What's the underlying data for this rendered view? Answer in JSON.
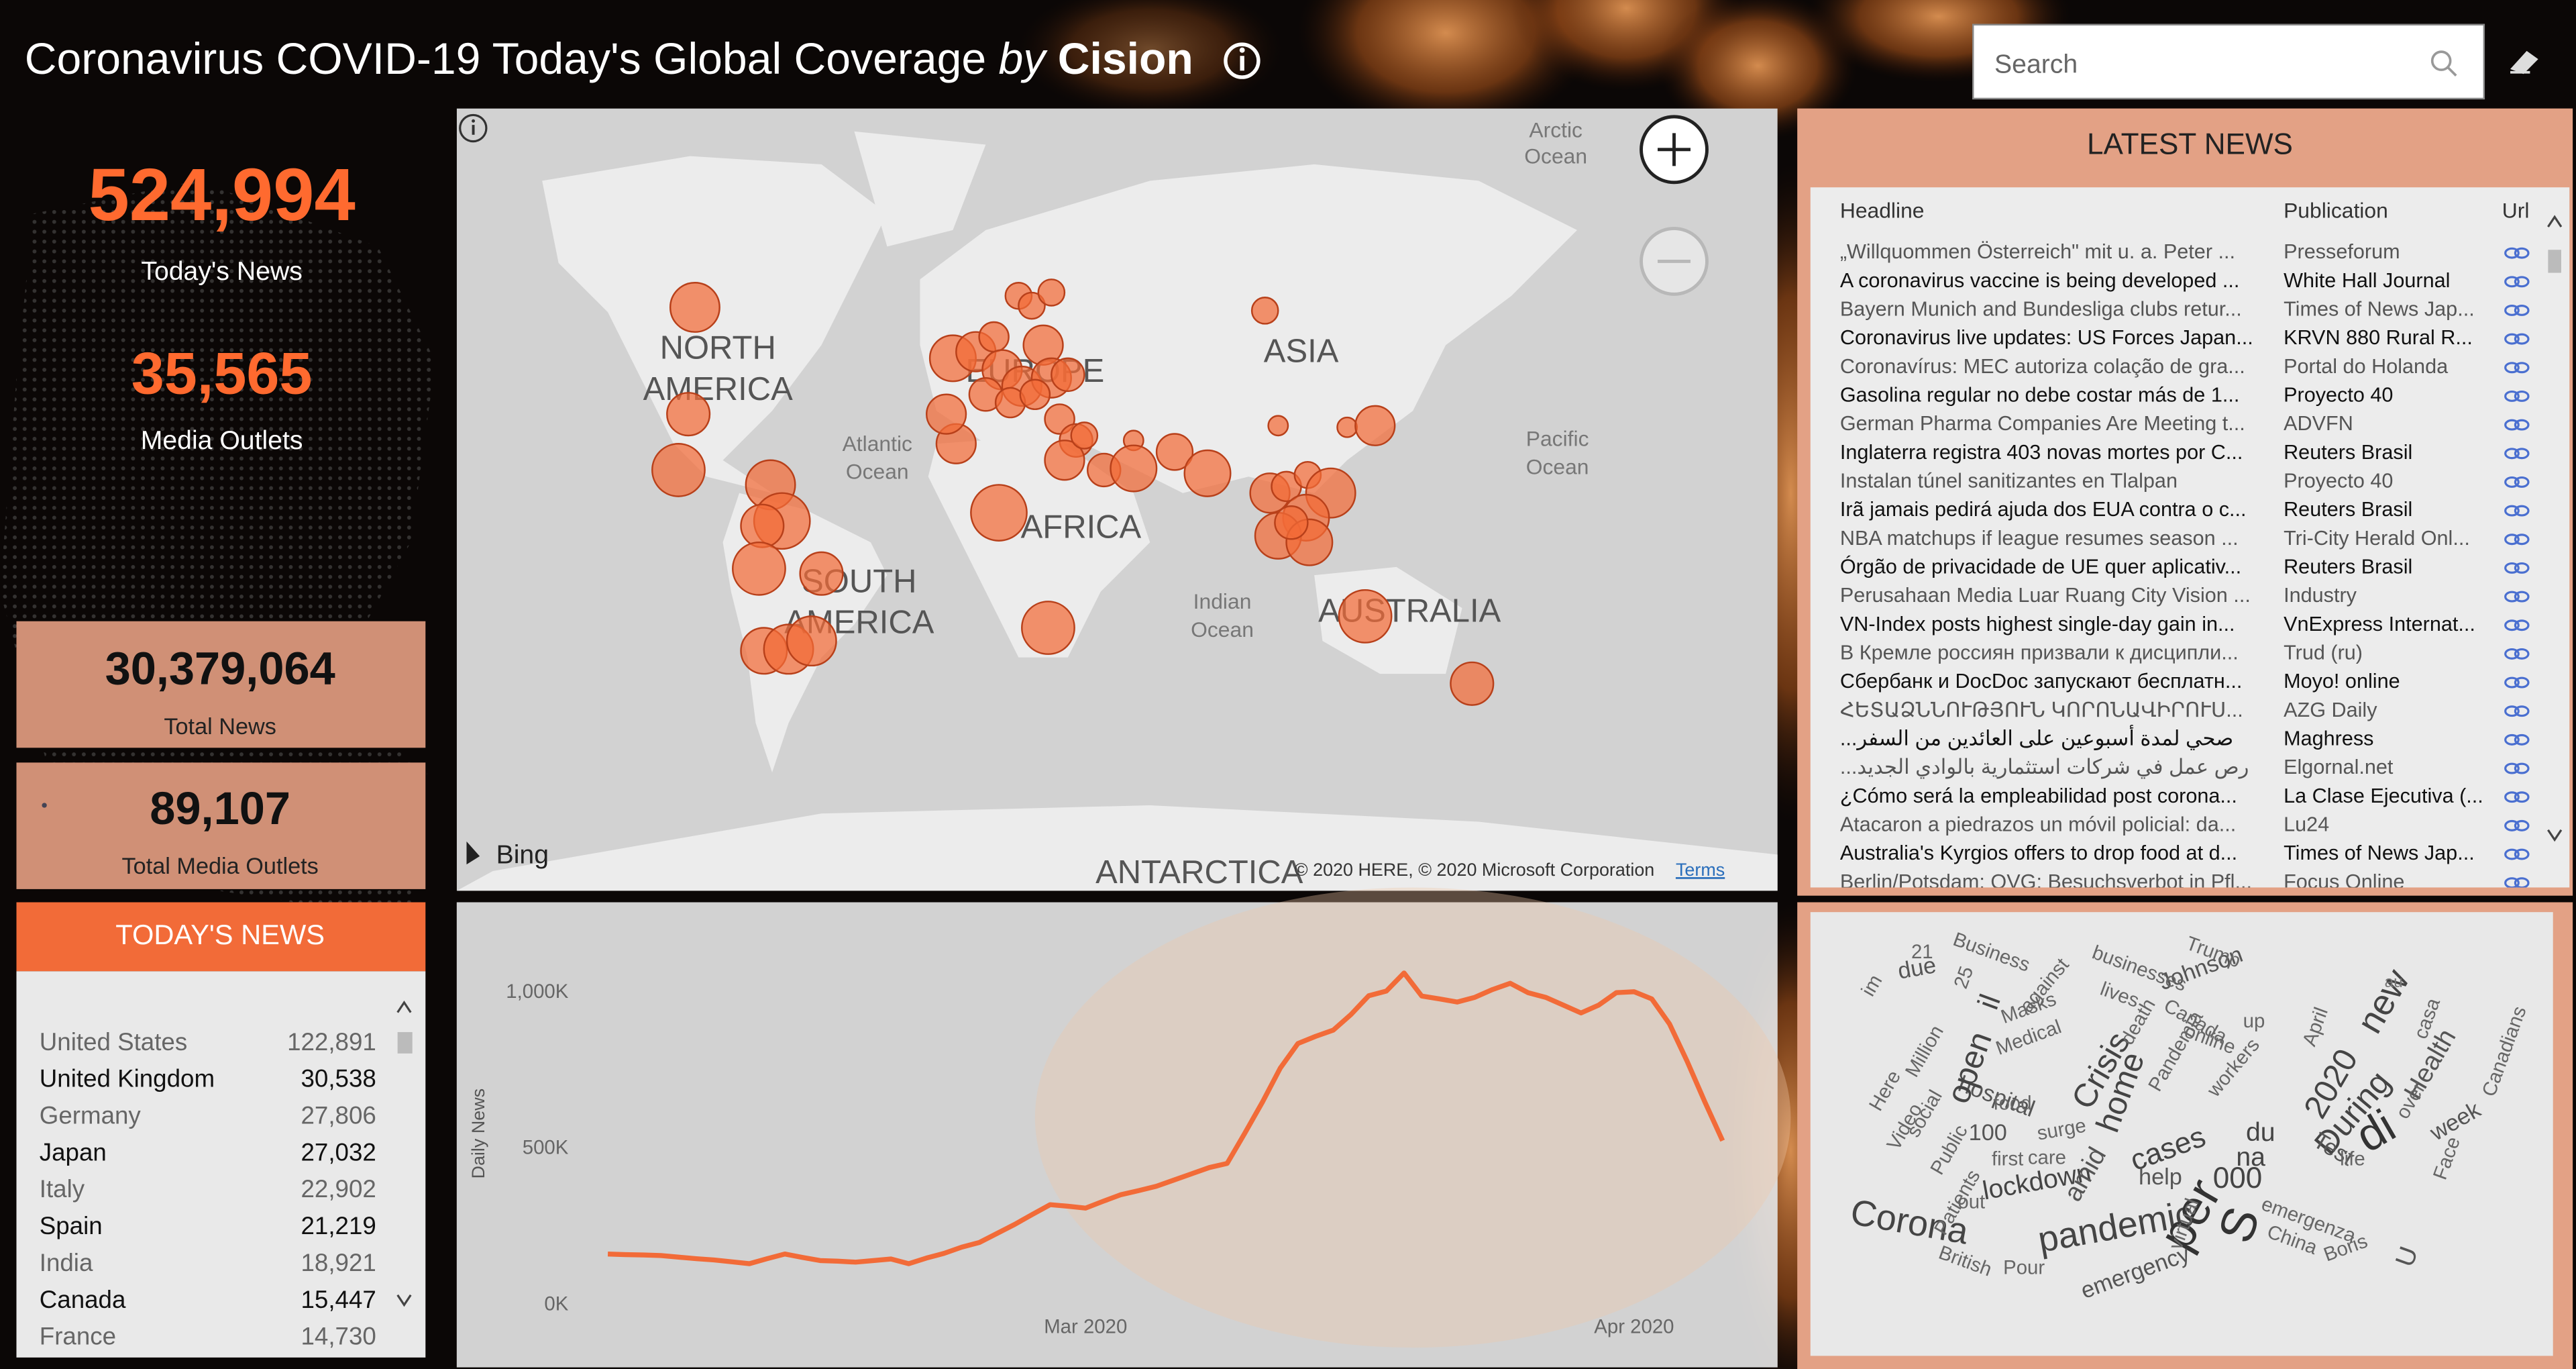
{
  "header": {
    "title_main": "Coronavirus COVID-19 Today's Global Coverage",
    "title_by": "by",
    "title_brand": "Cision"
  },
  "search": {
    "placeholder": "Search"
  },
  "kpis": [
    {
      "value": "524,994",
      "label": "Today's News"
    },
    {
      "value": "35,565",
      "label": "Media Outlets"
    },
    {
      "value": "30,379,064",
      "label": "Total News"
    },
    {
      "value": "89,107",
      "label": "Total Media Outlets"
    }
  ],
  "todays_news": {
    "title": "TODAY'S NEWS",
    "rows": [
      [
        "United States",
        "122,891"
      ],
      [
        "United Kingdom",
        "30,538"
      ],
      [
        "Germany",
        "27,806"
      ],
      [
        "Japan",
        "27,032"
      ],
      [
        "Italy",
        "22,902"
      ],
      [
        "Spain",
        "21,219"
      ],
      [
        "India",
        "18,921"
      ],
      [
        "Canada",
        "15,447"
      ],
      [
        "France",
        "14,730"
      ]
    ]
  },
  "latest_news": {
    "title": "LATEST NEWS",
    "columns": [
      "Headline",
      "Publication",
      "Url"
    ],
    "rows": [
      [
        "„Willquommen Österreich\" mit u. a. Peter ...",
        "Presseforum"
      ],
      [
        "A coronavirus vaccine is being developed ...",
        "White Hall Journal"
      ],
      [
        "Bayern Munich and Bundesliga clubs retur...",
        "Times of News Jap..."
      ],
      [
        "Coronavirus live updates: US Forces Japan...",
        "KRVN 880 Rural R..."
      ],
      [
        "Coronavírus: MEC autoriza colação de gra...",
        "Portal do Holanda"
      ],
      [
        "Gasolina regular no debe costar más de 1...",
        "Proyecto 40"
      ],
      [
        "German Pharma Companies Are Meeting t...",
        "ADVFN"
      ],
      [
        "Inglaterra registra 403 novas mortes por C...",
        "Reuters Brasil"
      ],
      [
        "Instalan túnel sanitizantes en Tlalpan",
        "Proyecto 40"
      ],
      [
        "Irã jamais pedirá ajuda dos EUA contra o c...",
        "Reuters Brasil"
      ],
      [
        "NBA matchups if league resumes season ...",
        "Tri-City Herald Onl..."
      ],
      [
        "Órgão de privacidade de UE quer aplicativ...",
        "Reuters Brasil"
      ],
      [
        "Perusahaan Media Luar Ruang City Vision ...",
        "Industry"
      ],
      [
        "VN-Index posts highest single-day gain in...",
        "VnExpress Internat..."
      ],
      [
        "В Кремле россиян призвали к дисципли...",
        "Trud (ru)"
      ],
      [
        "Сбербанк и DocDoc запускают бесплатн...",
        "Moyo! online"
      ],
      [
        "ՀԵՏԱՁՆՆՈՒԹՅՈՒՆ ԿՈՐՈՆԱՎԻՐՈՒՍ...",
        "AZG Daily"
      ],
      [
        "...صحي لمدة أسبوعين على العائدين من السفر",
        "Maghress"
      ],
      [
        "...رص عمل في شركات استثمارية بالوادي الجديد",
        "Elgornal.net"
      ],
      [
        "¿Cómo será la empleabilidad post corona...",
        "La Clase Ejecutiva (..."
      ],
      [
        "Atacaron a piedrazos un móvil policial: da...",
        "Lu24"
      ],
      [
        "Australia's Kyrgios offers to drop food at d...",
        "Times of News Jap..."
      ],
      [
        "Berlin/Potsdam: QVG: Besuchsverbot in Pfl...",
        "Focus Online"
      ]
    ]
  },
  "map": {
    "labels": [
      "NORTH",
      "AMERICA",
      "SOUTH",
      "AMERICA",
      "EUROPE",
      "ASIA",
      "AFRICA",
      "AUSTRALIA",
      "ANTARCTICA",
      "Atlantic",
      "Ocean",
      "Pacific",
      "Ocean",
      "Indian",
      "Ocean",
      "Arctic",
      "Ocean"
    ],
    "logo": "Bing",
    "attribution": "© 2020 HERE, © 2020 Microsoft Corporation",
    "terms": "Terms"
  },
  "word_cloud": {
    "words": [
      "Corona",
      "pandemic",
      "per",
      "S",
      "di",
      "During",
      "new",
      "2020",
      "Health",
      "week",
      "cases",
      "lockdown",
      "home",
      "Crisis",
      "hospital",
      "emergency",
      "000",
      "help",
      "du",
      "na",
      "amid",
      "open",
      "Johnson",
      "Trump",
      "Canada",
      "Masks",
      "Medical",
      "businesses",
      "Business",
      "against",
      "social",
      "Video",
      "Million",
      "Here",
      "Public",
      "Patients",
      "care",
      "first",
      "food",
      "surge",
      "100",
      "out",
      "British",
      "Pour",
      "China",
      "Boris",
      "emergenza",
      "Test",
      "Canadians",
      "casa",
      "au",
      "online",
      "workers",
      "April",
      "Pandemia",
      "lives",
      "death",
      "im",
      "due",
      "il",
      "21",
      "25",
      "U",
      "virtual",
      "life",
      "up",
      "Face",
      "over"
    ]
  },
  "chart_data": {
    "type": "line",
    "y_label": "Daily News",
    "color": "#f26b38",
    "categories": [
      null,
      null,
      null,
      null,
      null,
      null,
      null,
      null,
      null,
      null,
      null,
      null,
      null,
      null,
      null,
      null,
      null,
      null,
      null,
      null,
      null,
      null,
      null,
      null,
      null,
      null,
      null,
      "Mar 2020",
      null,
      null,
      null,
      null,
      null,
      null,
      null,
      null,
      null,
      null,
      null,
      null,
      null,
      null,
      null,
      null,
      null,
      null,
      null,
      null,
      null,
      null,
      null,
      null,
      null,
      null,
      null,
      null,
      null,
      null,
      "Apr 2020",
      null,
      null,
      null,
      null,
      null
    ],
    "values": [
      163000,
      161000,
      160000,
      158000,
      153000,
      148000,
      144000,
      138000,
      132000,
      148000,
      163000,
      152000,
      142000,
      140000,
      137000,
      142000,
      147000,
      132000,
      150000,
      165000,
      185000,
      200000,
      229000,
      258000,
      290000,
      321000,
      316000,
      310000,
      332000,
      353000,
      366000,
      380000,
      400000,
      420000,
      440000,
      453000,
      550000,
      650000,
      758000,
      837000,
      860000,
      880000,
      930000,
      990000,
      1005000,
      1063000,
      989000,
      980000,
      970000,
      985000,
      1010000,
      1030000,
      1000000,
      985000,
      960000,
      935000,
      960000,
      1000000,
      1003000,
      980000,
      900000,
      780000,
      650000,
      526000
    ],
    "ylim": [
      0,
      1150000
    ],
    "yticks": [
      {
        "value": 0,
        "label": "0K"
      },
      {
        "value": 500000,
        "label": "500K"
      },
      {
        "value": 1000000,
        "label": "1,000K"
      }
    ]
  }
}
